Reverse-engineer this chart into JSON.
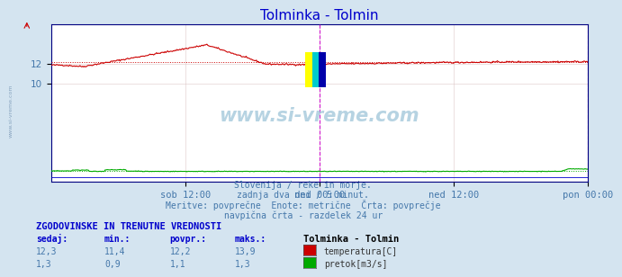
{
  "title": "Tolminka - Tolmin",
  "title_color": "#0000cc",
  "bg_color": "#d4e4f0",
  "plot_bg_color": "#ffffff",
  "x_ticks_labels": [
    "sob 12:00",
    "ned 00:00",
    "ned 12:00",
    "pon 00:00"
  ],
  "x_ticks_pos": [
    0.25,
    0.5,
    0.75,
    1.0
  ],
  "ylim": [
    0,
    16
  ],
  "y_ticks": [
    10,
    12
  ],
  "avg_temp": 12.2,
  "avg_flow": 1.1,
  "temp_color": "#cc0000",
  "flow_color": "#00aa00",
  "blue_line_color": "#0000cc",
  "vline_color": "#cc00cc",
  "grid_color": "#ddc8c8",
  "axis_color": "#000080",
  "tick_color": "#4477aa",
  "watermark_color": "#aaccdd",
  "watermark_alpha": 0.85,
  "footnote_lines": [
    "Slovenija / reke in morje.",
    "zadnja dva dni / 5 minut.",
    "Meritve: povprečne  Enote: metrične  Črta: povprečje",
    "navpična črta - razdelek 24 ur"
  ],
  "legend_title": "Tolminka - Tolmin",
  "legend_items": [
    {
      "label": "temperatura[C]",
      "color": "#cc0000"
    },
    {
      "label": "pretok[m3/s]",
      "color": "#00aa00"
    }
  ],
  "table_header": "ZGODOVINSKE IN TRENUTNE VREDNOSTI",
  "table_cols": [
    "sedaj:",
    "min.:",
    "povpr.:",
    "maks.:"
  ],
  "table_rows": [
    [
      "12,3",
      "11,4",
      "12,2",
      "13,9"
    ],
    [
      "1,3",
      "0,9",
      "1,1",
      "1,3"
    ]
  ],
  "n_points": 576
}
